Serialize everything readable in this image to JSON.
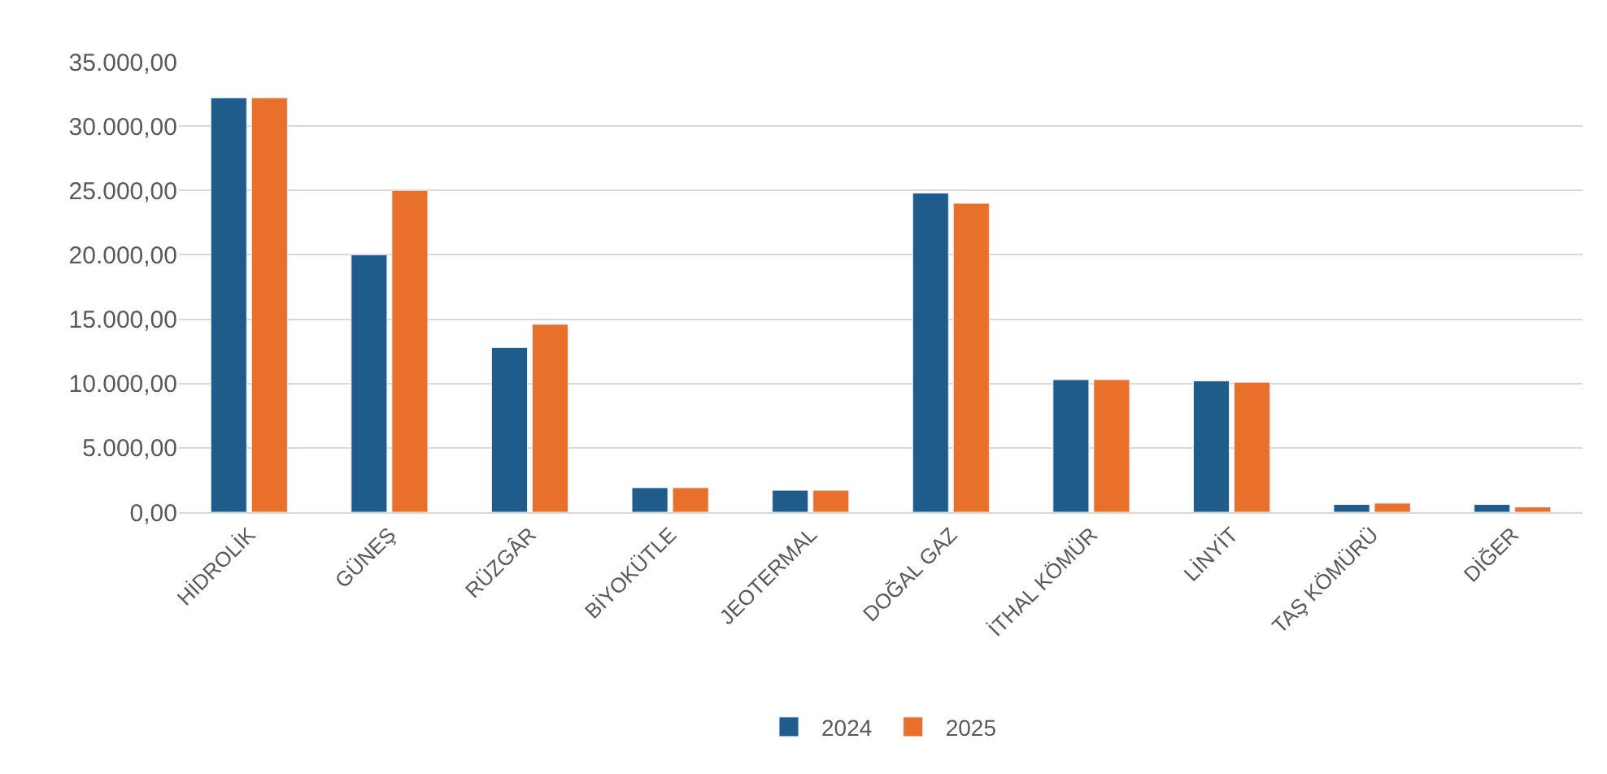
{
  "chart_data": {
    "type": "bar",
    "categories": [
      "HİDROLİK",
      "GÜNEŞ",
      "RÜZGÂR",
      "BİYOKÜTLE",
      "JEOTERMAL",
      "DOĞAL GAZ",
      "İTHAL KÖMÜR",
      "LİNYİT",
      "TAŞ KÖMÜRÜ",
      "DİĞER"
    ],
    "series": [
      {
        "name": "2024",
        "color": "#1f5c8b",
        "values": [
          32200,
          20000,
          12800,
          1900,
          1700,
          24800,
          10300,
          10200,
          600,
          600
        ]
      },
      {
        "name": "2025",
        "color": "#e8702a",
        "values": [
          32200,
          25000,
          14600,
          1900,
          1700,
          24000,
          10300,
          10100,
          700,
          400
        ]
      }
    ],
    "ylim": [
      0,
      35000
    ],
    "yticks": [
      {
        "value": 0,
        "label": "0,00"
      },
      {
        "value": 5000,
        "label": "5.000,00"
      },
      {
        "value": 10000,
        "label": "10.000,00"
      },
      {
        "value": 15000,
        "label": "15.000,00"
      },
      {
        "value": 20000,
        "label": "20.000,00"
      },
      {
        "value": 25000,
        "label": "25.000,00"
      },
      {
        "value": 30000,
        "label": "30.000,00"
      },
      {
        "value": 35000,
        "label": "35.000,00"
      }
    ],
    "grid": "y",
    "legend": "bottom"
  }
}
